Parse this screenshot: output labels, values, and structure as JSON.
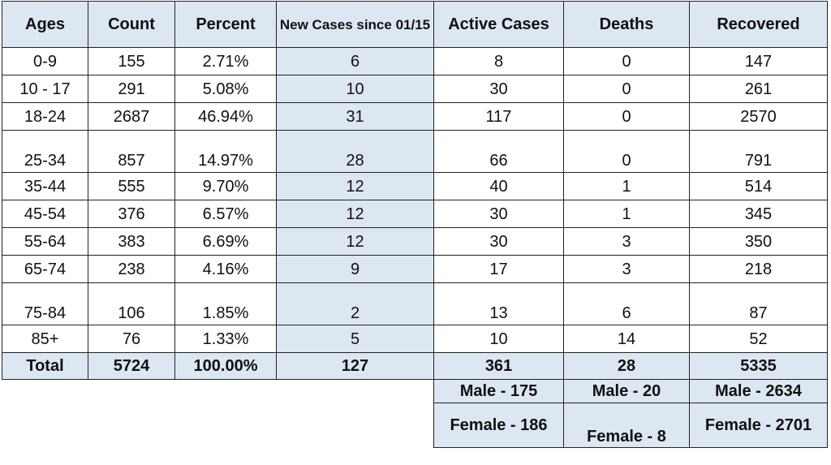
{
  "headers": {
    "ages": "Ages",
    "count": "Count",
    "percent": "Percent",
    "new_cases": "New Cases since 01/15",
    "active": "Active Cases",
    "deaths": "Deaths",
    "recovered": "Recovered"
  },
  "rows": [
    {
      "ages": "0-9",
      "count": "155",
      "percent": "2.71%",
      "new_cases": "6",
      "active": "8",
      "deaths": "0",
      "recovered": "147"
    },
    {
      "ages": "10 - 17",
      "count": "291",
      "percent": "5.08%",
      "new_cases": "10",
      "active": "30",
      "deaths": "0",
      "recovered": "261"
    },
    {
      "ages": "18-24",
      "count": "2687",
      "percent": "46.94%",
      "new_cases": "31",
      "active": "117",
      "deaths": "0",
      "recovered": "2570"
    },
    {
      "ages": "25-34",
      "count": "857",
      "percent": "14.97%",
      "new_cases": "28",
      "active": "66",
      "deaths": "0",
      "recovered": "791"
    },
    {
      "ages": "35-44",
      "count": "555",
      "percent": "9.70%",
      "new_cases": "12",
      "active": "40",
      "deaths": "1",
      "recovered": "514"
    },
    {
      "ages": "45-54",
      "count": "376",
      "percent": "6.57%",
      "new_cases": "12",
      "active": "30",
      "deaths": "1",
      "recovered": "345"
    },
    {
      "ages": "55-64",
      "count": "383",
      "percent": "6.69%",
      "new_cases": "12",
      "active": "30",
      "deaths": "3",
      "recovered": "350"
    },
    {
      "ages": "65-74",
      "count": "238",
      "percent": "4.16%",
      "new_cases": "9",
      "active": "17",
      "deaths": "3",
      "recovered": "218"
    },
    {
      "ages": "75-84",
      "count": "106",
      "percent": "1.85%",
      "new_cases": "2",
      "active": "13",
      "deaths": "6",
      "recovered": "87"
    },
    {
      "ages": "85+",
      "count": "76",
      "percent": "1.33%",
      "new_cases": "5",
      "active": "10",
      "deaths": "14",
      "recovered": "52"
    }
  ],
  "total": {
    "ages": "Total",
    "count": "5724",
    "percent": "100.00%",
    "new_cases": "127",
    "active": "361",
    "deaths": "28",
    "recovered": "5335"
  },
  "gender": {
    "active_male": "Male - 175",
    "active_female": "Female - 186",
    "deaths_male": "Male - 20",
    "deaths_female": "Female - 8",
    "recovered_male": "Male - 2634",
    "recovered_female": "Female - 2701"
  },
  "colors": {
    "header_bg": "#dde7f2",
    "border": "#222222"
  }
}
